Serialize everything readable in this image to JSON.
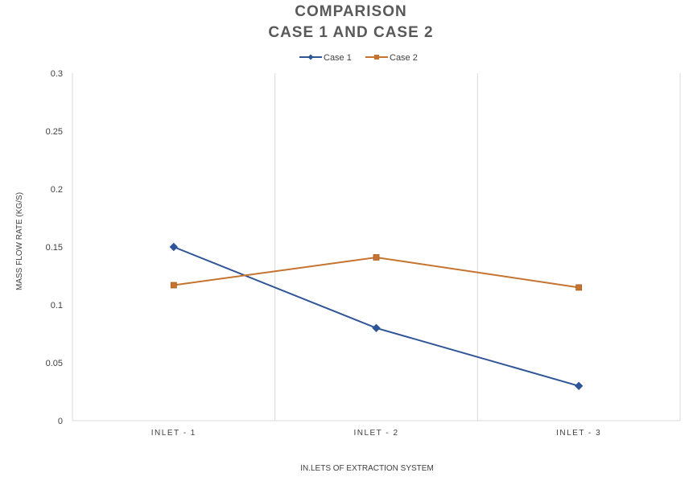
{
  "chart_data": {
    "type": "line",
    "title": [
      "COMPARISON",
      "CASE 1 AND CASE 2"
    ],
    "xlabel": "IN.LETS OF EXTRACTION SYSTEM",
    "ylabel": "MASS FLOW RATE (KG/S)",
    "categories": [
      "INLET - 1",
      "INLET - 2",
      "INLET - 3"
    ],
    "ylim": [
      0,
      0.3
    ],
    "yticks": [
      0,
      0.05,
      0.1,
      0.15,
      0.2,
      0.25,
      0.3
    ],
    "ytick_labels": [
      "0",
      "0.05",
      "0.1",
      "0.15",
      "0.2",
      "0.25",
      "0.3"
    ],
    "grid": "vertical category separators",
    "legend": "top-center",
    "series": [
      {
        "name": "Case 1",
        "values": [
          0.15,
          0.08,
          0.03
        ],
        "color": "#2E5597",
        "marker": "diamond"
      },
      {
        "name": "Case 2",
        "values": [
          0.117,
          0.141,
          0.115
        ],
        "color": "#C5732F",
        "marker": "square"
      }
    ]
  }
}
